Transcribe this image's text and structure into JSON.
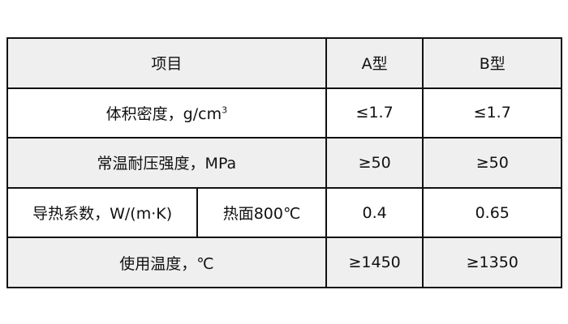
{
  "table": {
    "header": {
      "item": "项目",
      "a": "A型",
      "b": "B型"
    },
    "rows": [
      {
        "item": "体积密度，g/cm",
        "item_sup": "3",
        "a": "≤1.7",
        "b": "≤1.7"
      },
      {
        "item": "常温耐压强度，MPa",
        "a": "≥50",
        "b": "≥50"
      },
      {
        "item": "导热系数，W/(m·K)",
        "sub": "热面800℃",
        "a": "0.4",
        "b": "0.65"
      },
      {
        "item": "使用温度，℃",
        "a": "≥1450",
        "b": "≥1350"
      }
    ]
  },
  "colors": {
    "alt_row": "#efefef",
    "border": "#111111"
  }
}
